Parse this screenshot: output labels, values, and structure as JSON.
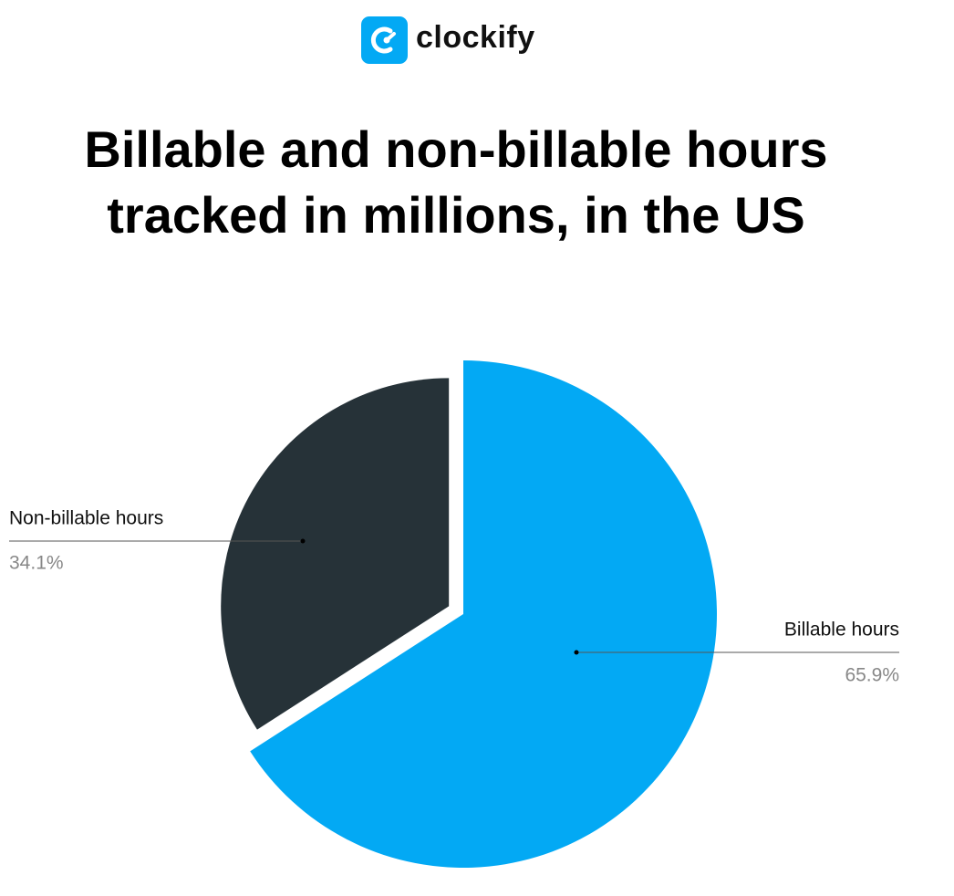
{
  "logo": "clockify",
  "chart_data": {
    "type": "pie",
    "title": "Billable and non-billable hours tracked in millions, in the US",
    "categories": [
      "Billable hours",
      "Non-billable hours"
    ],
    "values": [
      65.9,
      34.1
    ],
    "value_labels": [
      "65.9%",
      "34.1%"
    ],
    "colors": [
      "#03a9f4",
      "#263238"
    ]
  }
}
